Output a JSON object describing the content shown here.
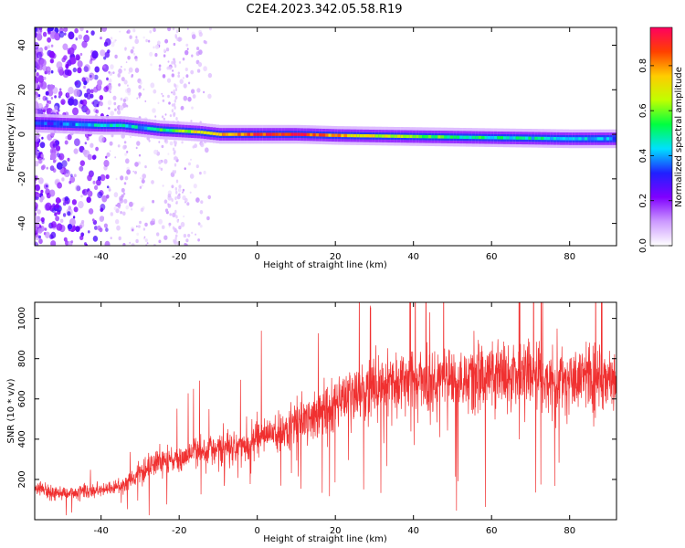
{
  "chart_data": [
    {
      "type": "heatmap",
      "title": "C2E4.2023.342.05.58.R19",
      "xlabel": "Height of straight line (km)",
      "ylabel": "Frequency (Hz)",
      "xlim": [
        -57,
        92
      ],
      "ylim": [
        -50,
        48
      ],
      "xticks": [
        -40,
        -20,
        0,
        20,
        40,
        60,
        80
      ],
      "yticks": [
        -40,
        -20,
        0,
        20,
        40
      ],
      "ytick_labels": [
        "-40",
        "-20",
        "0",
        "20",
        "40"
      ],
      "colorbar": {
        "label": "Normalized spectral amplitude",
        "range": [
          0,
          0.97
        ],
        "ticks": [
          0.0,
          0.2,
          0.4,
          0.6,
          0.8
        ],
        "tick_labels": [
          "0.0",
          "0.2",
          "0.4",
          "0.6",
          "0.8"
        ],
        "colormap": [
          "#ffffff",
          "#cc99ff",
          "#8000ff",
          "#2020ff",
          "#00e0ff",
          "#00ff40",
          "#c0ff00",
          "#ffcc00",
          "#ff4000",
          "#ff0060"
        ]
      },
      "ridge": {
        "x": [
          -57,
          -40,
          -35,
          -30,
          -25,
          -20,
          -15,
          -10,
          -5,
          0,
          10,
          20,
          40,
          60,
          80,
          92
        ],
        "frequency": [
          5,
          4,
          4,
          3,
          2,
          1.5,
          1,
          0,
          0,
          0,
          0,
          -0.5,
          -1,
          -1.5,
          -2,
          -2
        ],
        "amplitude": [
          0.3,
          0.45,
          0.45,
          0.45,
          0.55,
          0.6,
          0.75,
          0.8,
          0.85,
          0.9,
          0.95,
          0.8,
          0.6,
          0.5,
          0.45,
          0.4
        ]
      },
      "grid": false
    },
    {
      "type": "line",
      "xlabel": "Height of straight line (km)",
      "ylabel": "SNR (10 * v/v)",
      "xlim": [
        -57,
        92
      ],
      "ylim": [
        0,
        1080
      ],
      "xticks": [
        -40,
        -20,
        0,
        20,
        40,
        60,
        80
      ],
      "yticks": [
        200,
        400,
        600,
        800,
        1000
      ],
      "color": "#f03030",
      "series_trend": {
        "x": [
          -57,
          -50,
          -40,
          -35,
          -30,
          -25,
          -20,
          -15,
          -10,
          -5,
          0,
          5,
          10,
          15,
          20,
          30,
          40,
          50,
          60,
          70,
          80,
          92
        ],
        "y": [
          150,
          130,
          150,
          160,
          240,
          290,
          300,
          340,
          360,
          370,
          400,
          430,
          480,
          520,
          580,
          650,
          690,
          700,
          720,
          720,
          700,
          700
        ]
      },
      "grid": false
    }
  ]
}
